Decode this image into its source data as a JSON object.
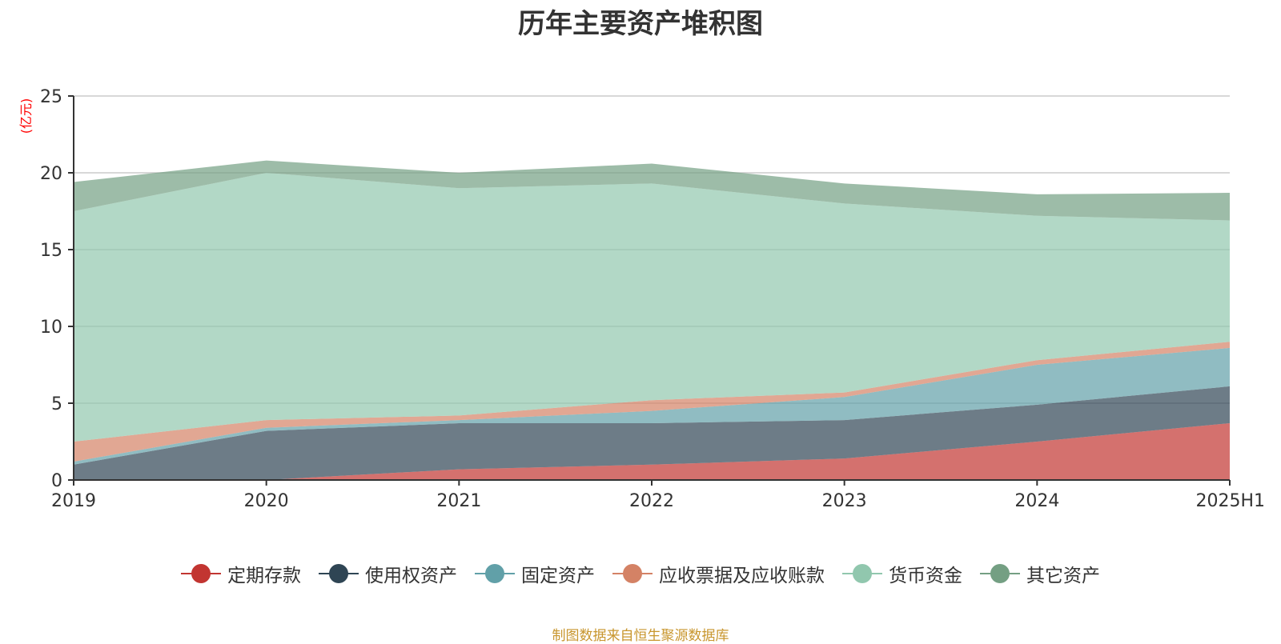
{
  "chart_data": {
    "type": "area",
    "stacked": true,
    "title": "历年主要资产堆积图",
    "ylabel": "(亿元)",
    "xlabel": "",
    "categories": [
      "2019",
      "2020",
      "2021",
      "2022",
      "2023",
      "2024",
      "2025H1"
    ],
    "ylim": [
      0,
      25
    ],
    "yticks": [
      0,
      5,
      10,
      15,
      20,
      25
    ],
    "grid": true,
    "legend_position": "bottom",
    "series": [
      {
        "name": "定期存款",
        "color": "#c23531",
        "values": [
          0,
          0,
          0.7,
          1.0,
          1.4,
          2.5,
          3.7
        ]
      },
      {
        "name": "使用权资产",
        "color": "#2f4554",
        "values": [
          1.0,
          3.2,
          3.0,
          2.7,
          2.5,
          2.4,
          2.4
        ]
      },
      {
        "name": "固定资产",
        "color": "#61a0a8",
        "values": [
          0.2,
          0.2,
          0.2,
          0.8,
          1.5,
          2.6,
          2.5
        ]
      },
      {
        "name": "应收票据及应收账款",
        "color": "#d48265",
        "values": [
          1.3,
          0.5,
          0.3,
          0.7,
          0.3,
          0.3,
          0.4
        ]
      },
      {
        "name": "货币资金",
        "color": "#91c7ae",
        "values": [
          15.0,
          16.1,
          14.8,
          14.1,
          12.3,
          9.4,
          7.9
        ]
      },
      {
        "name": "其它资产",
        "color": "#749f83",
        "values": [
          1.9,
          0.8,
          1.0,
          1.3,
          1.3,
          1.4,
          1.8
        ]
      }
    ]
  },
  "footer": {
    "source": "制图数据来自恒生聚源数据库"
  }
}
